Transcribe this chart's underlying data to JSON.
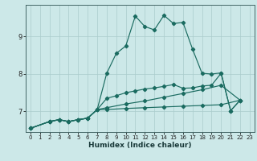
{
  "xlabel": "Humidex (Indice chaleur)",
  "ylabel": "",
  "background_color": "#cce8e8",
  "line_color": "#1a6b60",
  "grid_color": "#aacccc",
  "xlim": [
    -0.5,
    23.5
  ],
  "ylim": [
    6.45,
    9.85
  ],
  "yticks": [
    7,
    8,
    9
  ],
  "xticks": [
    0,
    1,
    2,
    3,
    4,
    5,
    6,
    7,
    8,
    9,
    10,
    11,
    12,
    13,
    14,
    15,
    16,
    17,
    18,
    19,
    20,
    21,
    22,
    23
  ],
  "lines": [
    {
      "x": [
        0,
        2,
        3,
        4,
        5,
        6,
        7,
        8,
        9,
        10,
        11,
        12,
        13,
        14,
        15,
        16,
        17,
        18,
        19,
        20,
        21,
        22
      ],
      "y": [
        6.55,
        6.73,
        6.78,
        6.73,
        6.78,
        6.82,
        7.05,
        8.02,
        8.55,
        8.75,
        9.55,
        9.27,
        9.18,
        9.57,
        9.35,
        9.38,
        8.67,
        8.02,
        8.0,
        8.03,
        7.02,
        7.3
      ]
    },
    {
      "x": [
        0,
        2,
        3,
        4,
        5,
        6,
        7,
        8,
        9,
        10,
        11,
        12,
        13,
        14,
        15,
        16,
        17,
        18,
        19,
        20,
        21,
        22
      ],
      "y": [
        6.55,
        6.73,
        6.78,
        6.73,
        6.78,
        6.82,
        7.05,
        7.35,
        7.42,
        7.5,
        7.55,
        7.6,
        7.63,
        7.67,
        7.72,
        7.62,
        7.63,
        7.68,
        7.7,
        8.02,
        7.02,
        7.3
      ]
    },
    {
      "x": [
        0,
        2,
        3,
        4,
        5,
        6,
        7,
        8,
        10,
        12,
        14,
        16,
        18,
        20,
        22
      ],
      "y": [
        6.55,
        6.73,
        6.78,
        6.73,
        6.78,
        6.82,
        7.05,
        7.1,
        7.2,
        7.28,
        7.38,
        7.48,
        7.58,
        7.7,
        7.3
      ]
    },
    {
      "x": [
        0,
        2,
        3,
        4,
        5,
        6,
        7,
        8,
        10,
        12,
        14,
        16,
        18,
        20,
        22
      ],
      "y": [
        6.55,
        6.73,
        6.78,
        6.73,
        6.78,
        6.82,
        7.05,
        7.05,
        7.08,
        7.1,
        7.12,
        7.14,
        7.16,
        7.18,
        7.3
      ]
    }
  ]
}
